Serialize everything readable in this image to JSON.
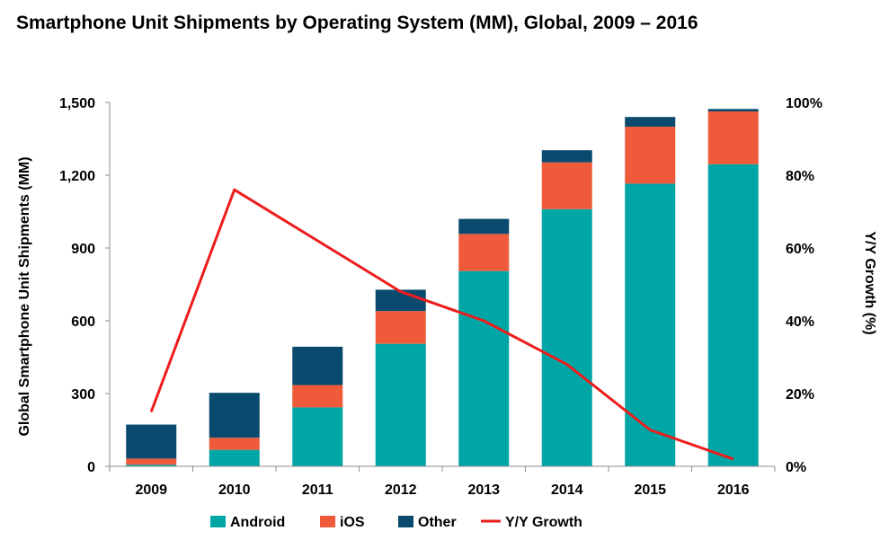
{
  "chart_data": {
    "type": "bar",
    "stacked": true,
    "title": "Smartphone Unit Shipments by Operating System (MM), Global, 2009 – 2016",
    "categories": [
      "2009",
      "2010",
      "2011",
      "2012",
      "2013",
      "2014",
      "2015",
      "2016"
    ],
    "series": [
      {
        "name": "Android",
        "type": "bar",
        "axis": "left",
        "color": "#00A6A6",
        "values": [
          7,
          68,
          243,
          505,
          805,
          1060,
          1165,
          1245
        ]
      },
      {
        "name": "iOS",
        "type": "bar",
        "axis": "left",
        "color": "#EE5A3A",
        "values": [
          25,
          50,
          92,
          135,
          153,
          193,
          235,
          218
        ]
      },
      {
        "name": "Other",
        "type": "bar",
        "axis": "left",
        "color": "#0A4A6E",
        "values": [
          140,
          185,
          158,
          88,
          62,
          50,
          40,
          10
        ]
      },
      {
        "name": "Y/Y Growth",
        "type": "line",
        "axis": "right",
        "color": "#EE1C1C",
        "values": [
          15,
          76,
          62,
          48,
          40,
          28,
          10,
          2
        ]
      }
    ],
    "ylabel": "Global Smartphone Unit Shipments (MM)",
    "y2label": "Y/Y Growth (%)",
    "ylim": [
      0,
      1500
    ],
    "y2lim": [
      0,
      100
    ],
    "yticks": [
      "0",
      "300",
      "600",
      "900",
      "1,200",
      "1,500"
    ],
    "y2ticks": [
      "0%",
      "20%",
      "40%",
      "60%",
      "80%",
      "100%"
    ],
    "grid": false,
    "legend": "bottom"
  }
}
